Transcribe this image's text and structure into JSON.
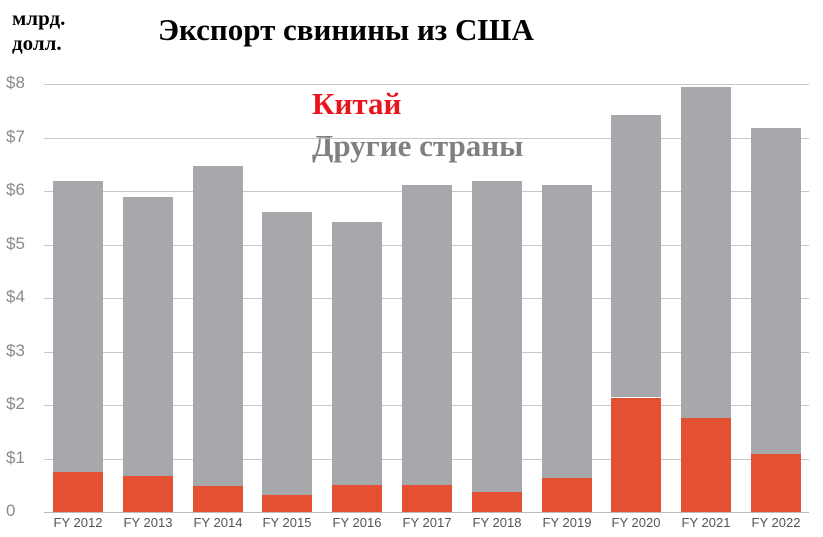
{
  "chart_data": {
    "type": "bar",
    "stacked": true,
    "title": "Экспорт свинины из США",
    "ylabel": "млрд. долл.",
    "xlabel": "",
    "ylim": [
      0,
      8
    ],
    "yticks": [
      "0",
      "$1",
      "$2",
      "$3",
      "$4",
      "$5",
      "$6",
      "$7",
      "$8"
    ],
    "grid": true,
    "legend_position": "top-center",
    "categories": [
      "FY 2012",
      "FY 2013",
      "FY 2014",
      "FY 2015",
      "FY 2016",
      "FY 2017",
      "FY 2018",
      "FY 2019",
      "FY 2020",
      "FY 2021",
      "FY 2022"
    ],
    "series": [
      {
        "name": "Китай",
        "color": "#e35032",
        "values": [
          0.75,
          0.68,
          0.49,
          0.31,
          0.51,
          0.51,
          0.38,
          0.63,
          2.14,
          1.76,
          1.09
        ]
      },
      {
        "name": "Другие страны",
        "color": "#a7a8ab",
        "values": [
          5.44,
          5.21,
          5.98,
          5.3,
          4.91,
          5.6,
          5.81,
          5.48,
          5.28,
          6.18,
          6.09
        ]
      }
    ],
    "totals": [
      6.19,
      5.89,
      6.47,
      5.61,
      5.42,
      6.11,
      6.19,
      6.11,
      7.42,
      7.94,
      7.18
    ]
  },
  "header": {
    "unit_line1": "млрд.",
    "unit_line2": "долл.",
    "title": "Экспорт свинины из США"
  },
  "legend": {
    "china": {
      "label": "Китай",
      "color": "#e8141e"
    },
    "other": {
      "label": "Другие страны",
      "color": "#808080"
    }
  }
}
